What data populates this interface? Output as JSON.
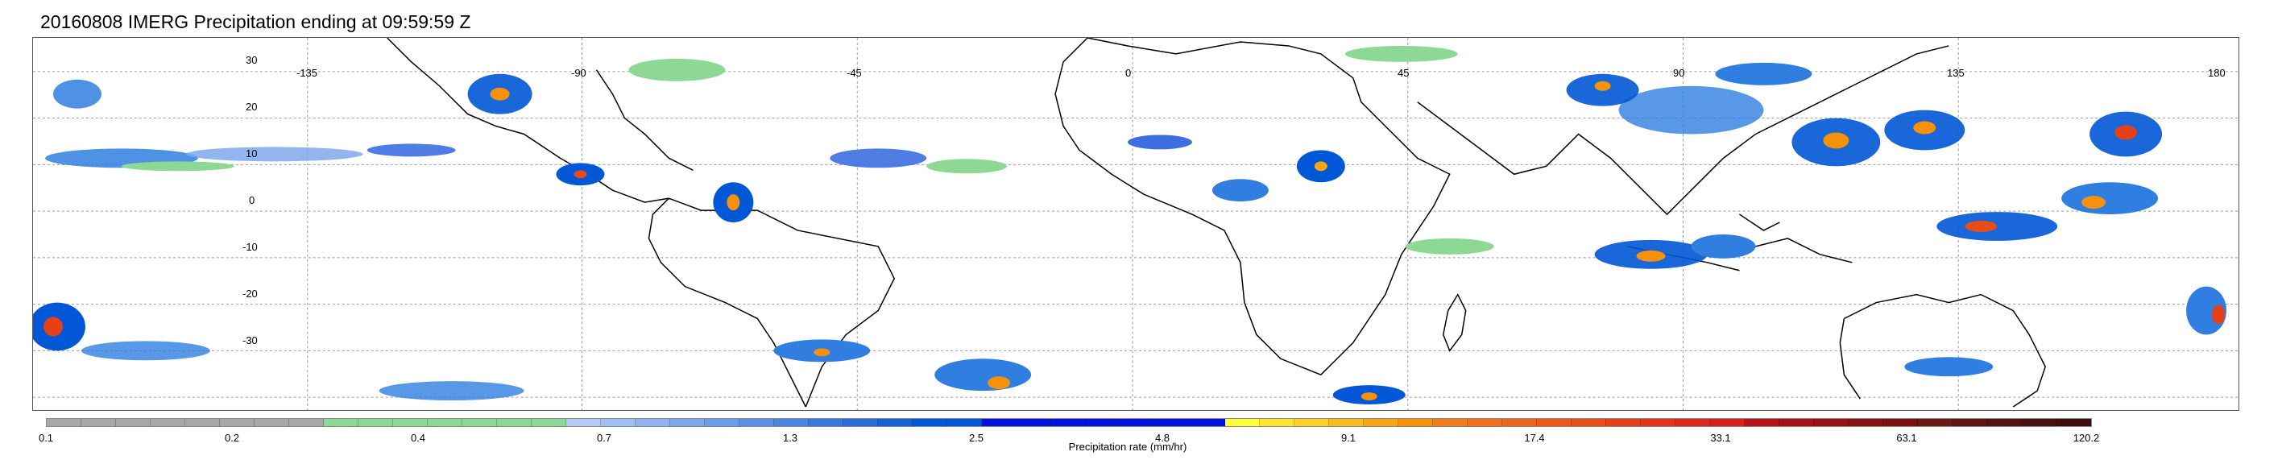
{
  "title": "20160808 IMERG Precipitation ending at 09:59:59 Z",
  "map": {
    "lon_labels": [
      "-135",
      "-90",
      "-45",
      "0",
      "45",
      "90",
      "135",
      "180"
    ],
    "lat_labels": [
      "30",
      "20",
      "10",
      "0",
      "-10",
      "-20",
      "-30"
    ],
    "coastline_color": "#000000",
    "grid_color": "#9a9a9a"
  },
  "colorbar": {
    "label": "Precipitation rate (mm/hr)",
    "tick_labels": [
      "0.1",
      "0.2",
      "0.4",
      "0.7",
      "1.3",
      "2.5",
      "4.8",
      "9.1",
      "17.4",
      "33.1",
      "63.1",
      "120.2"
    ],
    "colors": [
      "#a8a8a8",
      "#a8a8a8",
      "#a8a8a8",
      "#a8a8a8",
      "#a8a8a8",
      "#a8a8a8",
      "#a8a8a8",
      "#a8a8a8",
      "#8dd895",
      "#8dd895",
      "#8dd895",
      "#8dd895",
      "#8dd895",
      "#8dd895",
      "#8dd895",
      "#b5cbf6",
      "#a3c0f3",
      "#91b4f0",
      "#7fa8ec",
      "#6d9de9",
      "#5b91e6",
      "#4986e2",
      "#377adf",
      "#256edc",
      "#1362d8",
      "#0157d5",
      "#0157d5",
      "#0011e0",
      "#0011e0",
      "#0011e0",
      "#0011e0",
      "#0011e0",
      "#0011e0",
      "#0011e0",
      "#ffff3a",
      "#fde430",
      "#fbd027",
      "#f9bb1e",
      "#f7a614",
      "#f5910b",
      "#f47c18",
      "#f17018",
      "#ee6418",
      "#eb5818",
      "#e84c18",
      "#e54018",
      "#e23418",
      "#dc2a1a",
      "#d5201c",
      "#b8111a",
      "#a81018",
      "#981016",
      "#881014",
      "#781012",
      "#6a1a10",
      "#5e1510",
      "#52120f",
      "#47100e",
      "#3d0f0d"
    ]
  }
}
